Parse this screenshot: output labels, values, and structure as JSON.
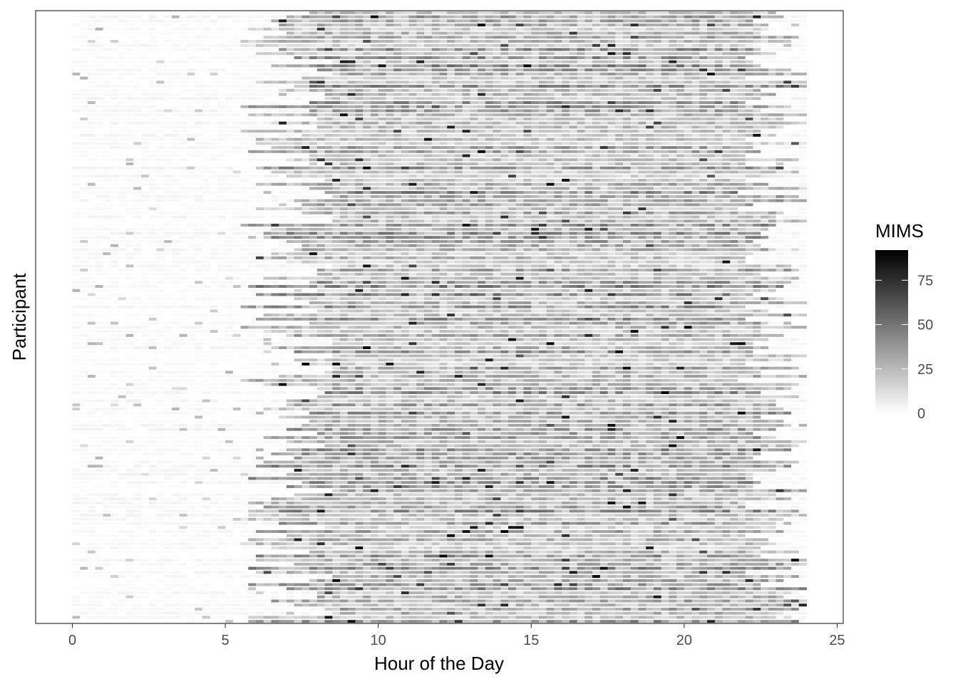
{
  "chart_data": {
    "type": "heatmap",
    "title": "",
    "xlabel": "Hour of the Day",
    "ylabel": "Participant",
    "xlim": [
      -1.2,
      25.2
    ],
    "x_ticks": [
      0,
      5,
      10,
      15,
      20,
      25
    ],
    "x_tick_labels": [
      "0",
      "5",
      "10",
      "15",
      "20",
      "25"
    ],
    "y_tick_labels": [],
    "data_x_range": [
      0,
      24
    ],
    "n_participants": 150,
    "legend": {
      "title": "MIMS",
      "range": [
        0,
        92
      ],
      "ticks": [
        0,
        25,
        50,
        75
      ],
      "tick_labels": [
        "0",
        "25",
        "50",
        "75"
      ],
      "color_low": "#ffffff",
      "color_high": "#000000",
      "placement": "right"
    },
    "pattern": {
      "night_level": 3,
      "day_level": 26,
      "typical_wake_hour": 7,
      "typical_sleep_hour": 23,
      "max_value": 92
    },
    "grid": false
  }
}
